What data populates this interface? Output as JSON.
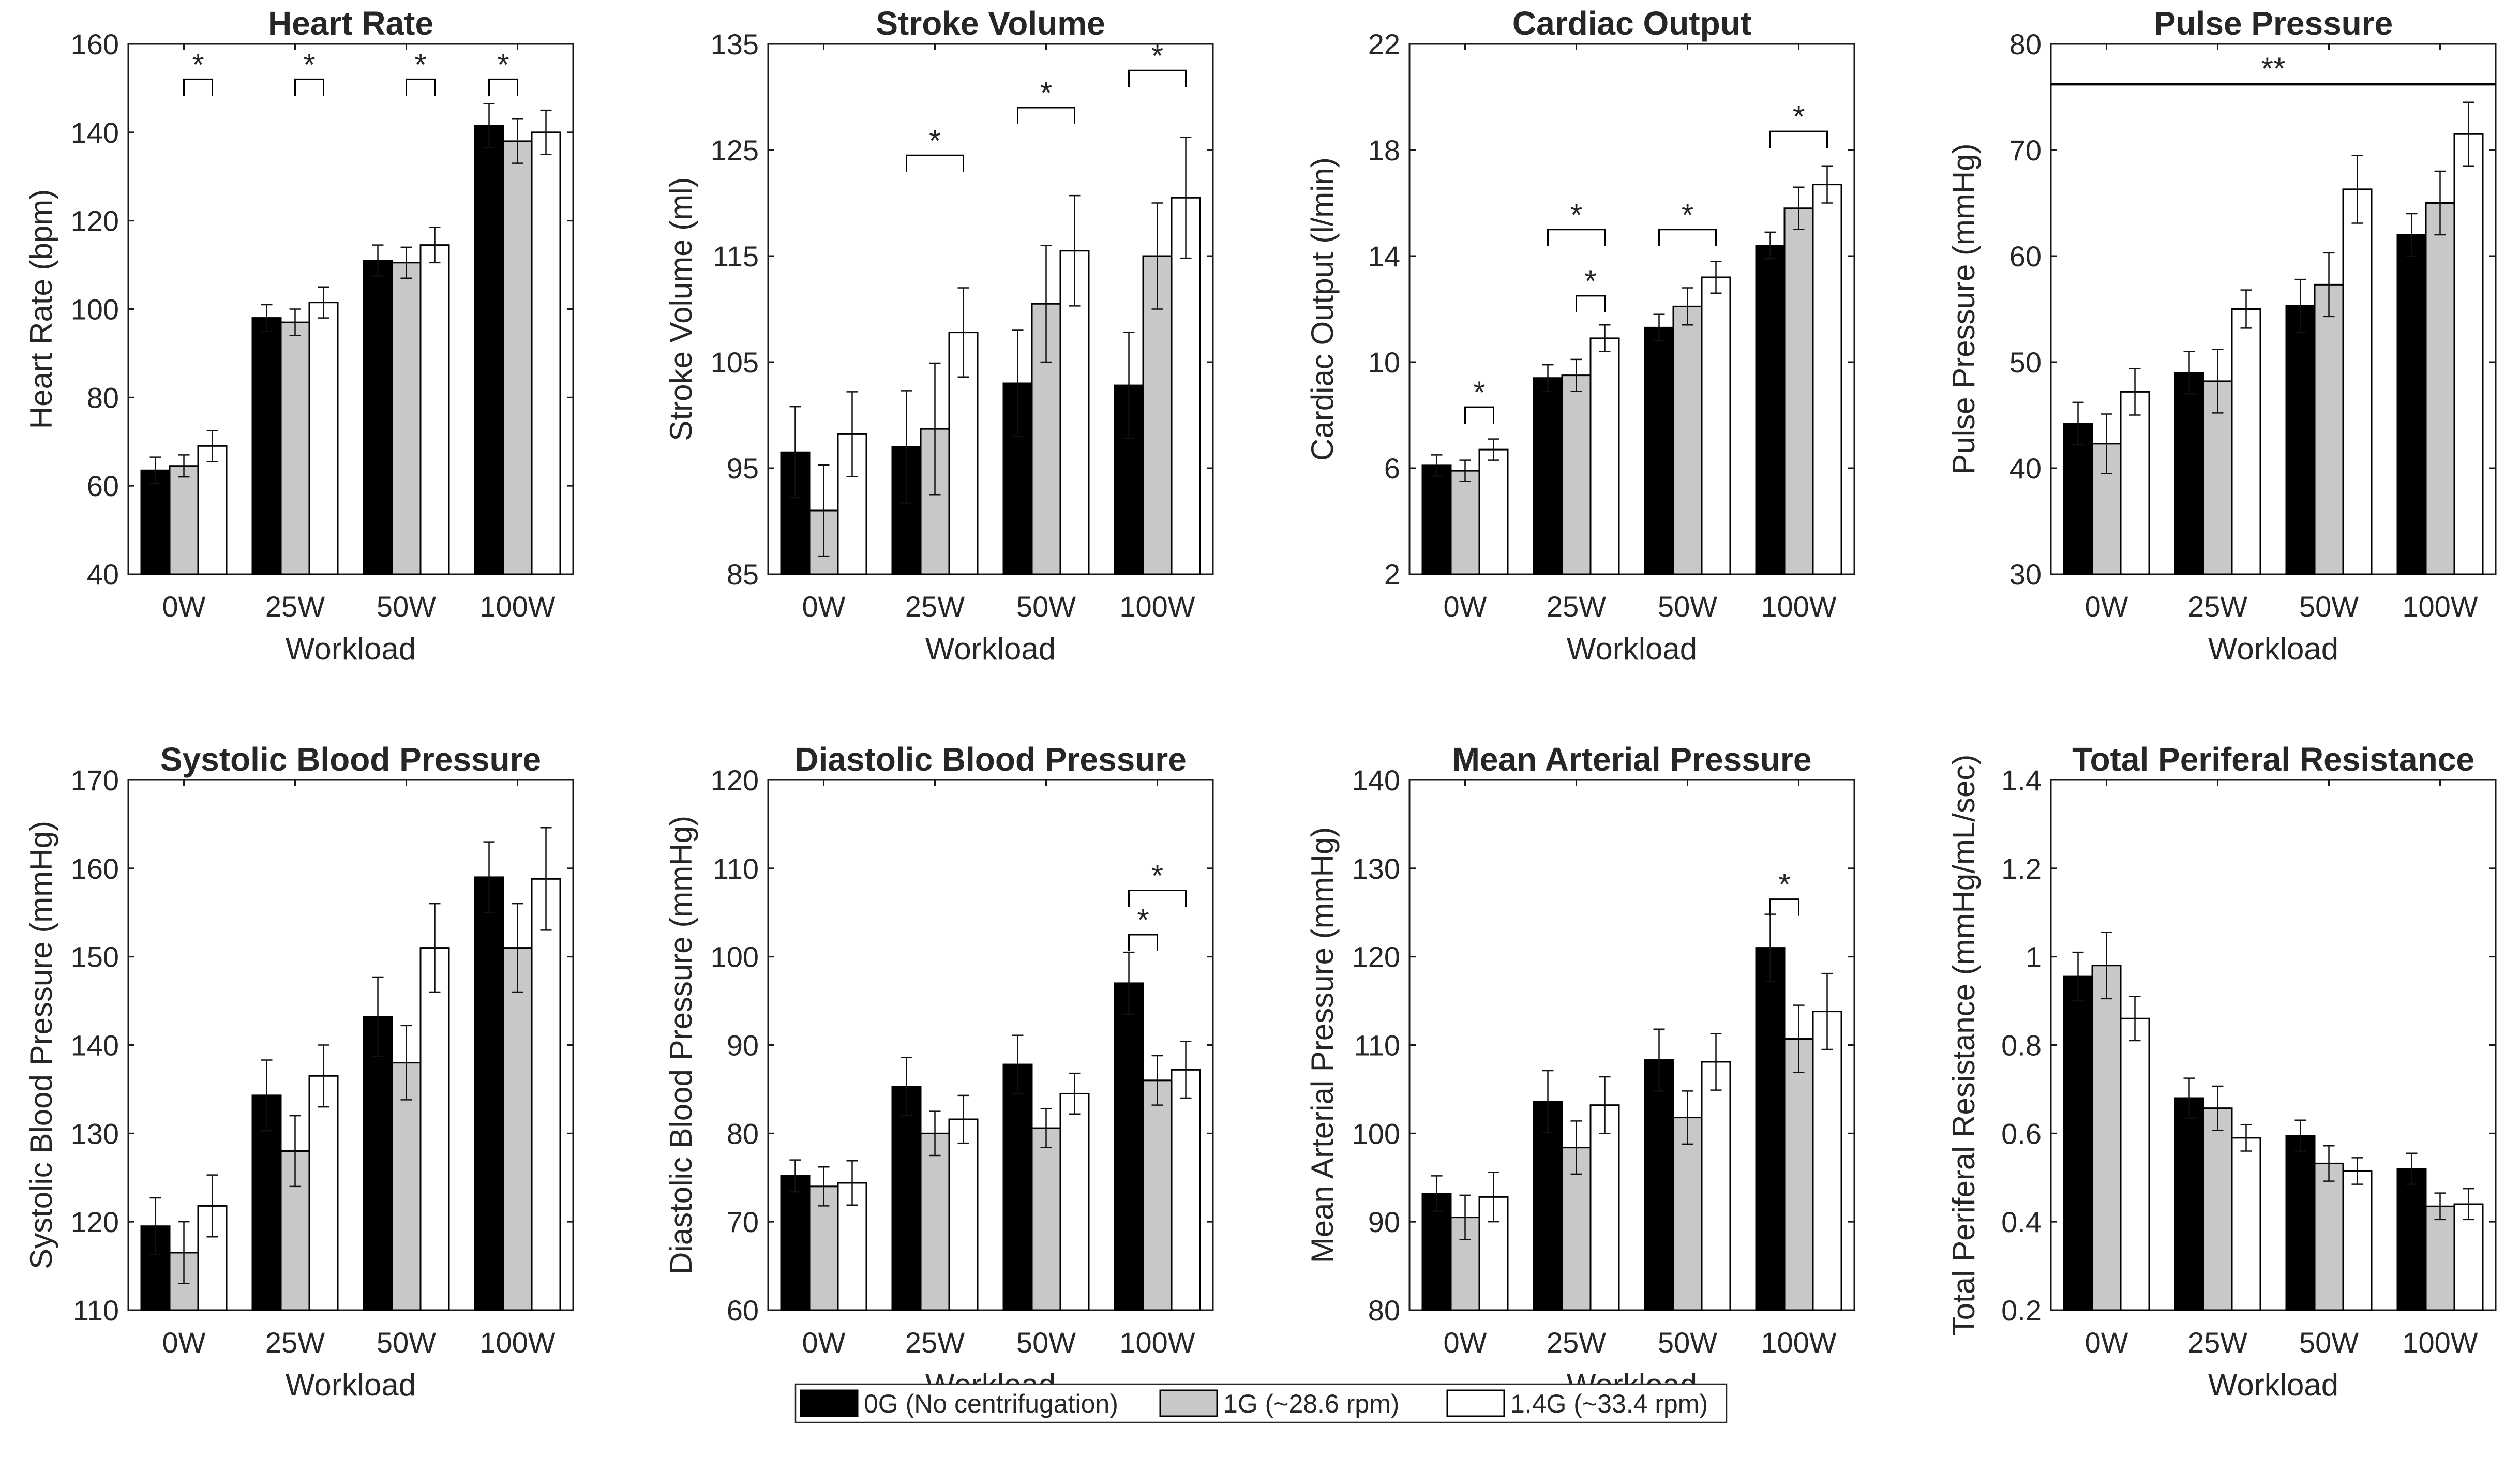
{
  "series": [
    {
      "name": "0G (No centrifugation)",
      "color": "#000000"
    },
    {
      "name": "1G (~28.6 rpm)",
      "color": "#c8c8c8"
    },
    {
      "name": "1.4G (~33.4 rpm)",
      "color": "#ffffff"
    }
  ],
  "legend": {
    "placement": "bottom-center",
    "labels": [
      "0G (No centrifugation)",
      "1G (~28.6 rpm)",
      "1.4G (~33.4 rpm)"
    ]
  },
  "chart_data": [
    {
      "type": "bar",
      "title": "Heart Rate",
      "ylabel": "Heart Rate (bpm)",
      "xlabel": "Workload",
      "categories": [
        "0W",
        "25W",
        "50W",
        "100W"
      ],
      "ylim": [
        40,
        160
      ],
      "yticks": [
        40,
        60,
        80,
        100,
        120,
        140,
        160
      ],
      "ytick_labels": [
        "40",
        "60",
        "80",
        "100",
        "120",
        "140",
        "160"
      ],
      "series": [
        {
          "name": "0G (No centrifugation)",
          "values": [
            63.5,
            98,
            111,
            141.5
          ],
          "errors": [
            3,
            3,
            3.5,
            5
          ]
        },
        {
          "name": "1G (~28.6 rpm)",
          "values": [
            64.5,
            97,
            110.5,
            138
          ],
          "errors": [
            2.5,
            3,
            3.5,
            5
          ]
        },
        {
          "name": "1.4G (~33.4 rpm)",
          "values": [
            69,
            101.5,
            114.5,
            140
          ],
          "errors": [
            3.5,
            3.5,
            4,
            5
          ]
        }
      ],
      "annotations": [
        {
          "label": "*",
          "cat": 0,
          "from": 1,
          "to": 2,
          "y": 152
        },
        {
          "label": "*",
          "cat": 1,
          "from": 1,
          "to": 2,
          "y": 152
        },
        {
          "label": "*",
          "cat": 2,
          "from": 1,
          "to": 2,
          "y": 152
        },
        {
          "label": "*",
          "cat": 3,
          "from": 0,
          "to": 1,
          "y": 152
        }
      ]
    },
    {
      "type": "bar",
      "title": "Stroke Volume",
      "ylabel": "Stroke Volume (ml)",
      "xlabel": "Workload",
      "categories": [
        "0W",
        "25W",
        "50W",
        "100W"
      ],
      "ylim": [
        85,
        135
      ],
      "yticks": [
        85,
        95,
        105,
        115,
        125,
        135
      ],
      "ytick_labels": [
        "85",
        "95",
        "105",
        "115",
        "125",
        "135"
      ],
      "series": [
        {
          "name": "0G (No centrifugation)",
          "values": [
            96.5,
            97,
            103,
            102.8
          ],
          "errors": [
            4.3,
            5.3,
            5,
            5
          ]
        },
        {
          "name": "1G (~28.6 rpm)",
          "values": [
            91,
            98.7,
            110.5,
            115
          ],
          "errors": [
            4.3,
            6.2,
            5.5,
            5
          ]
        },
        {
          "name": "1.4G (~33.4 rpm)",
          "values": [
            98.2,
            107.8,
            115.5,
            120.5
          ],
          "errors": [
            4,
            4.2,
            5.2,
            5.7
          ]
        }
      ],
      "annotations": [
        {
          "label": "*",
          "cat": 1,
          "from": 0,
          "to": 2,
          "y": 124.5
        },
        {
          "label": "*",
          "cat": 2,
          "from": 0,
          "to": 2,
          "y": 129
        },
        {
          "label": "*",
          "cat": 3,
          "from": 0,
          "to": 2,
          "y": 132.5
        }
      ]
    },
    {
      "type": "bar",
      "title": "Cardiac Output",
      "ylabel": "Cardiac Output (l/min)",
      "xlabel": "Workload",
      "categories": [
        "0W",
        "25W",
        "50W",
        "100W"
      ],
      "ylim": [
        2,
        22
      ],
      "yticks": [
        2,
        6,
        10,
        14,
        18,
        22
      ],
      "ytick_labels": [
        "2",
        "6",
        "10",
        "14",
        "18",
        "22"
      ],
      "series": [
        {
          "name": "0G (No centrifugation)",
          "values": [
            6.1,
            9.4,
            11.3,
            14.4
          ],
          "errors": [
            0.4,
            0.5,
            0.5,
            0.5
          ]
        },
        {
          "name": "1G (~28.6 rpm)",
          "values": [
            5.9,
            9.5,
            12.1,
            15.8
          ],
          "errors": [
            0.4,
            0.6,
            0.7,
            0.8
          ]
        },
        {
          "name": "1.4G (~33.4 rpm)",
          "values": [
            6.7,
            10.9,
            13.2,
            16.7
          ],
          "errors": [
            0.4,
            0.5,
            0.6,
            0.7
          ]
        }
      ],
      "annotations": [
        {
          "label": "*",
          "cat": 0,
          "from": 1,
          "to": 2,
          "y": 8.3
        },
        {
          "label": "*",
          "cat": 1,
          "from": 1,
          "to": 2,
          "y": 12.5
        },
        {
          "label": "*",
          "cat": 1,
          "from": 0,
          "to": 2,
          "y": 15
        },
        {
          "label": "*",
          "cat": 2,
          "from": 0,
          "to": 2,
          "y": 15
        },
        {
          "label": "*",
          "cat": 3,
          "from": 0,
          "to": 2,
          "y": 18.7
        }
      ]
    },
    {
      "type": "bar",
      "title": "Pulse Pressure",
      "ylabel": "Pulse Pressure (mmHg)",
      "xlabel": "Workload",
      "categories": [
        "0W",
        "25W",
        "50W",
        "100W"
      ],
      "ylim": [
        30,
        80
      ],
      "yticks": [
        30,
        40,
        50,
        60,
        70,
        80
      ],
      "ytick_labels": [
        "30",
        "40",
        "50",
        "60",
        "70",
        "80"
      ],
      "series": [
        {
          "name": "0G (No centrifugation)",
          "values": [
            44.2,
            49,
            55.3,
            62
          ],
          "errors": [
            2,
            2,
            2.5,
            2
          ]
        },
        {
          "name": "1G (~28.6 rpm)",
          "values": [
            42.3,
            48.2,
            57.3,
            65
          ],
          "errors": [
            2.8,
            3,
            3,
            3
          ]
        },
        {
          "name": "1.4G (~33.4 rpm)",
          "values": [
            47.2,
            55,
            66.3,
            71.5
          ],
          "errors": [
            2.2,
            1.8,
            3.2,
            3
          ]
        }
      ],
      "significance_line": {
        "label": "**",
        "y": 76.2
      }
    },
    {
      "type": "bar",
      "title": "Systolic Blood Pressure",
      "ylabel": "Systolic Blood Pressure (mmHg)",
      "xlabel": "Workload",
      "categories": [
        "0W",
        "25W",
        "50W",
        "100W"
      ],
      "ylim": [
        110,
        170
      ],
      "yticks": [
        110,
        120,
        130,
        140,
        150,
        160,
        170
      ],
      "ytick_labels": [
        "110",
        "120",
        "130",
        "140",
        "150",
        "160",
        "170"
      ],
      "series": [
        {
          "name": "0G (No centrifugation)",
          "values": [
            119.5,
            134.3,
            143.2,
            159
          ],
          "errors": [
            3.2,
            4,
            4.5,
            4
          ]
        },
        {
          "name": "1G (~28.6 rpm)",
          "values": [
            116.5,
            128,
            138,
            151
          ],
          "errors": [
            3.5,
            4,
            4.2,
            5
          ]
        },
        {
          "name": "1.4G (~33.4 rpm)",
          "values": [
            121.8,
            136.5,
            151,
            158.8
          ],
          "errors": [
            3.5,
            3.5,
            5,
            5.8
          ]
        }
      ],
      "annotations": []
    },
    {
      "type": "bar",
      "title": "Diastolic Blood Pressure",
      "ylabel": "Diastolic Blood Pressure (mmHg)",
      "xlabel": "Workload",
      "categories": [
        "0W",
        "25W",
        "50W",
        "100W"
      ],
      "ylim": [
        60,
        120
      ],
      "yticks": [
        60,
        70,
        80,
        90,
        100,
        110,
        120
      ],
      "ytick_labels": [
        "60",
        "70",
        "80",
        "90",
        "100",
        "110",
        "120"
      ],
      "series": [
        {
          "name": "0G (No centrifugation)",
          "values": [
            75.2,
            85.3,
            87.8,
            97
          ],
          "errors": [
            1.8,
            3.3,
            3.3,
            3.5
          ]
        },
        {
          "name": "1G (~28.6 rpm)",
          "values": [
            74,
            80,
            80.6,
            86
          ],
          "errors": [
            2.2,
            2.5,
            2.2,
            2.8
          ]
        },
        {
          "name": "1.4G (~33.4 rpm)",
          "values": [
            74.4,
            81.6,
            84.5,
            87.2
          ],
          "errors": [
            2.5,
            2.7,
            2.3,
            3.2
          ]
        }
      ],
      "annotations": [
        {
          "label": "*",
          "cat": 3,
          "from": 0,
          "to": 1,
          "y": 102.5
        },
        {
          "label": "*",
          "cat": 3,
          "from": 0,
          "to": 2,
          "y": 107.5
        }
      ]
    },
    {
      "type": "bar",
      "title": "Mean Arterial Pressure",
      "ylabel": "Mean Arterial Pressure (mmHg)",
      "xlabel": "Workload",
      "categories": [
        "0W",
        "25W",
        "50W",
        "100W"
      ],
      "ylim": [
        80,
        140
      ],
      "yticks": [
        80,
        90,
        100,
        110,
        120,
        130,
        140
      ],
      "ytick_labels": [
        "80",
        "90",
        "100",
        "110",
        "120",
        "130",
        "140"
      ],
      "series": [
        {
          "name": "0G (No centrifugation)",
          "values": [
            93.2,
            103.6,
            108.3,
            121
          ],
          "errors": [
            2,
            3.5,
            3.5,
            3.8
          ]
        },
        {
          "name": "1G (~28.6 rpm)",
          "values": [
            90.5,
            98.4,
            101.8,
            110.7
          ],
          "errors": [
            2.5,
            3,
            3,
            3.8
          ]
        },
        {
          "name": "1.4G (~33.4 rpm)",
          "values": [
            92.8,
            103.2,
            108.1,
            113.8
          ],
          "errors": [
            2.8,
            3.2,
            3.2,
            4.3
          ]
        }
      ],
      "annotations": [
        {
          "label": "*",
          "cat": 3,
          "from": 0,
          "to": 1,
          "y": 126.5
        }
      ]
    },
    {
      "type": "bar",
      "title": "Total Periferal Resistance",
      "ylabel": "Total Periferal Resistance (mmHg/mL/sec)",
      "xlabel": "Workload",
      "categories": [
        "0W",
        "25W",
        "50W",
        "100W"
      ],
      "ylim": [
        0.2,
        1.4
      ],
      "yticks": [
        0.2,
        0.4,
        0.6,
        0.8,
        1.0,
        1.2,
        1.4
      ],
      "ytick_labels": [
        "0.2",
        "0.4",
        "0.6",
        "0.8",
        "1",
        "1.2",
        "1.4"
      ],
      "series": [
        {
          "name": "0G (No centrifugation)",
          "values": [
            0.955,
            0.68,
            0.595,
            0.52
          ],
          "errors": [
            0.055,
            0.045,
            0.035,
            0.035
          ]
        },
        {
          "name": "1G (~28.6 rpm)",
          "values": [
            0.98,
            0.657,
            0.532,
            0.435
          ],
          "errors": [
            0.075,
            0.05,
            0.04,
            0.03
          ]
        },
        {
          "name": "1.4G (~33.4 rpm)",
          "values": [
            0.86,
            0.59,
            0.515,
            0.44
          ],
          "errors": [
            0.05,
            0.03,
            0.03,
            0.035
          ]
        }
      ],
      "annotations": []
    }
  ]
}
